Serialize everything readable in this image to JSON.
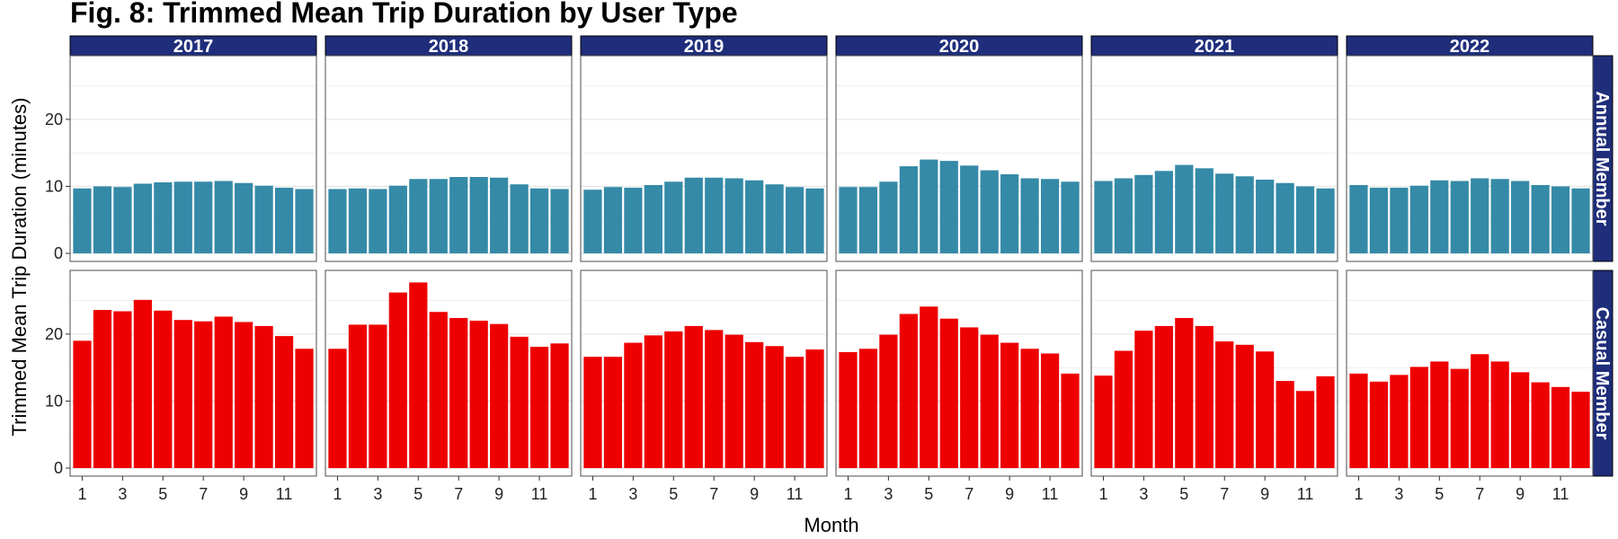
{
  "title": "Fig. 8: Trimmed Mean Trip Duration by User Type",
  "colors": {
    "strip_bg": "#1f2d7a",
    "strip_text": "#ffffff",
    "annual_bar": "#348aa7",
    "casual_bar": "#ee0000",
    "grid": "#e3e3e3",
    "panel_border": "#4d4d4d"
  },
  "chart_data": {
    "type": "bar",
    "title": "Fig. 8: Trimmed Mean Trip Duration by User Type",
    "xlabel": "Month",
    "ylabel": "Trimmed Mean Trip Duration (minutes)",
    "facet_columns": [
      "2017",
      "2018",
      "2019",
      "2020",
      "2021",
      "2022"
    ],
    "facet_rows": [
      "Annual Member",
      "Casual Member"
    ],
    "categories": [
      1,
      2,
      3,
      4,
      5,
      6,
      7,
      8,
      9,
      10,
      11,
      12
    ],
    "x_tick_labels": [
      "1",
      "3",
      "5",
      "7",
      "9",
      "11"
    ],
    "ylim": [
      -1.2,
      29.5
    ],
    "y_ticks": [
      0,
      10,
      20
    ],
    "grid": true,
    "series": [
      {
        "row": "Annual Member",
        "column": "2017",
        "values": [
          9.7,
          10.0,
          9.9,
          10.4,
          10.6,
          10.7,
          10.7,
          10.8,
          10.5,
          10.1,
          9.8,
          9.6
        ]
      },
      {
        "row": "Annual Member",
        "column": "2018",
        "values": [
          9.6,
          9.7,
          9.6,
          10.1,
          11.1,
          11.1,
          11.4,
          11.4,
          11.3,
          10.3,
          9.7,
          9.6
        ]
      },
      {
        "row": "Annual Member",
        "column": "2019",
        "values": [
          9.5,
          9.9,
          9.8,
          10.2,
          10.7,
          11.3,
          11.3,
          11.2,
          10.9,
          10.3,
          9.9,
          9.7
        ]
      },
      {
        "row": "Annual Member",
        "column": "2020",
        "values": [
          9.9,
          9.9,
          10.7,
          13.0,
          14.0,
          13.8,
          13.1,
          12.4,
          11.8,
          11.2,
          11.1,
          10.7
        ]
      },
      {
        "row": "Annual Member",
        "column": "2021",
        "values": [
          10.8,
          11.2,
          11.7,
          12.3,
          13.2,
          12.7,
          11.9,
          11.5,
          11.0,
          10.5,
          10.0,
          9.7
        ]
      },
      {
        "row": "Annual Member",
        "column": "2022",
        "values": [
          10.2,
          9.8,
          9.8,
          10.1,
          10.9,
          10.8,
          11.2,
          11.1,
          10.8,
          10.2,
          10.0,
          9.7
        ]
      },
      {
        "row": "Casual Member",
        "column": "2017",
        "values": [
          19.0,
          23.6,
          23.4,
          25.1,
          23.5,
          22.1,
          21.9,
          22.6,
          21.8,
          21.2,
          19.7,
          17.8
        ]
      },
      {
        "row": "Casual Member",
        "column": "2018",
        "values": [
          17.8,
          21.4,
          21.4,
          26.2,
          27.7,
          23.3,
          22.4,
          22.0,
          21.5,
          19.6,
          18.1,
          18.6
        ]
      },
      {
        "row": "Casual Member",
        "column": "2019",
        "values": [
          16.6,
          16.6,
          18.7,
          19.8,
          20.4,
          21.2,
          20.6,
          19.9,
          18.8,
          18.2,
          16.6,
          17.7
        ]
      },
      {
        "row": "Casual Member",
        "column": "2020",
        "values": [
          17.3,
          17.8,
          19.9,
          23.0,
          24.1,
          22.3,
          21.0,
          19.9,
          18.7,
          17.8,
          17.1,
          14.1
        ]
      },
      {
        "row": "Casual Member",
        "column": "2021",
        "values": [
          13.8,
          17.5,
          20.5,
          21.2,
          22.4,
          21.2,
          18.9,
          18.4,
          17.4,
          13.0,
          11.5,
          13.7
        ]
      },
      {
        "row": "Casual Member",
        "column": "2022",
        "values": [
          14.1,
          12.9,
          13.9,
          15.1,
          15.9,
          14.8,
          17.0,
          15.9,
          14.3,
          12.8,
          12.1,
          11.4
        ]
      }
    ]
  }
}
